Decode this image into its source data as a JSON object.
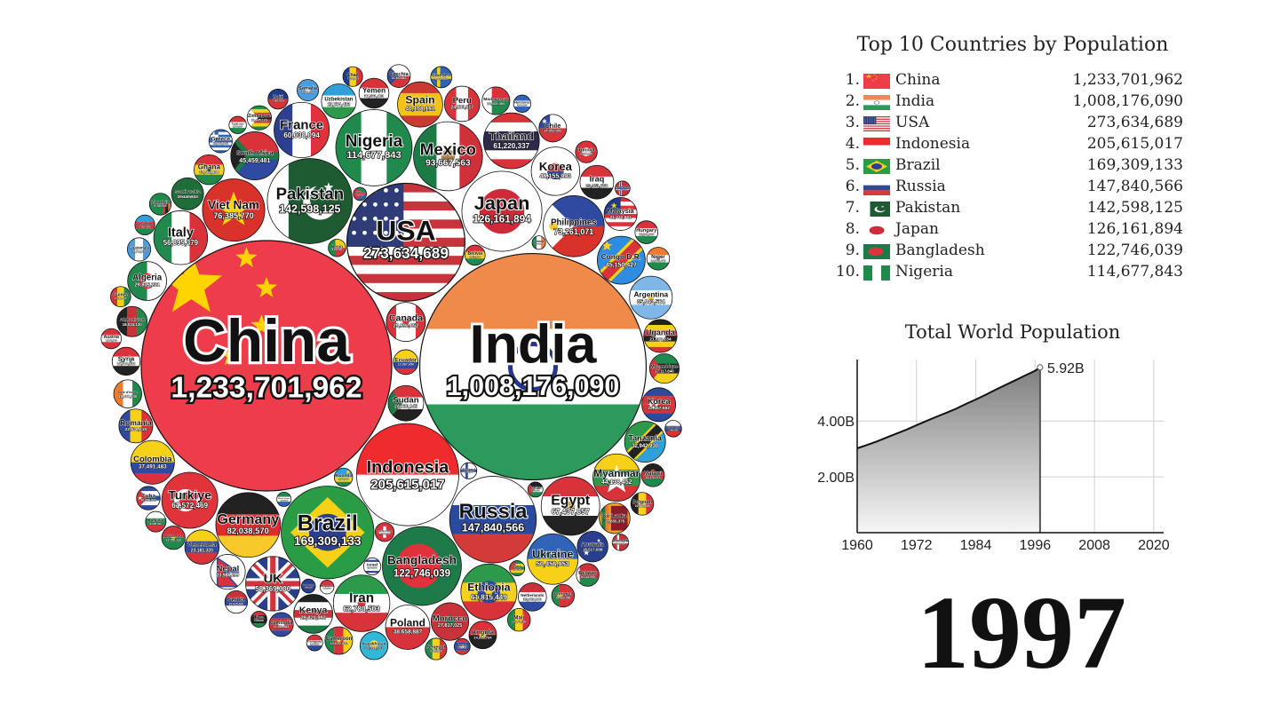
{
  "chart_data": [
    {
      "type": "bubble",
      "bubbles": [
        {
          "name": "China",
          "value": "1,233,701,962",
          "pop": 1233701962,
          "flag": "china"
        },
        {
          "name": "India",
          "value": "1,008,176,090",
          "pop": 1008176090,
          "flag": "india"
        },
        {
          "name": "USA",
          "value": "273,634,689",
          "pop": 273634689,
          "flag": "usa"
        },
        {
          "name": "Indonesia",
          "value": "205,615,017",
          "pop": 205615017,
          "flag": "indonesia"
        },
        {
          "name": "Brazil",
          "value": "169,309,133",
          "pop": 169309133,
          "flag": "brazil"
        },
        {
          "name": "Russia",
          "value": "147,840,566",
          "pop": 147840566,
          "flag": "russia"
        },
        {
          "name": "Pakistan",
          "value": "142,598,125",
          "pop": 142598125,
          "flag": "pakistan"
        },
        {
          "name": "Japan",
          "value": "126,161,894",
          "pop": 126161894,
          "flag": "japan"
        },
        {
          "name": "Bangladesh",
          "value": "122,746,039",
          "pop": 122746039,
          "flag": "bangladesh"
        },
        {
          "name": "Nigeria",
          "value": "114,677,843",
          "pop": 114677843,
          "flag": "nigeria"
        },
        {
          "name": "Mexico",
          "value": "93,667,563",
          "pop": 93667563,
          "flag": "mexico"
        },
        {
          "name": "Germany",
          "value": "82,038,570",
          "pop": 82038570,
          "flag": "germany"
        },
        {
          "name": "Viet Nam",
          "value": "76,385,770",
          "pop": 76385770,
          "flag": "vietnam"
        },
        {
          "name": "Philippines",
          "value": "73,261,071",
          "pop": 73261071,
          "flag": "philippines"
        },
        {
          "name": "Egypt",
          "value": "67,437,857",
          "pop": 67437857,
          "flag": "egypt"
        },
        {
          "name": "Iran",
          "value": "62,780,503",
          "pop": 62780503,
          "flag": "iran"
        },
        {
          "name": "Ethiopia",
          "value": "61,815,449",
          "pop": 61815449,
          "flag": "ethiopia"
        },
        {
          "name": "Turkiye",
          "value": "61,572,469",
          "pop": 61572469,
          "flag": "turkiye"
        },
        {
          "name": "Thailand",
          "value": "61,220,337",
          "pop": 61220337,
          "flag": "thailand"
        },
        {
          "name": "France",
          "value": "60,038,094",
          "pop": 60038094,
          "flag": "france"
        },
        {
          "name": "UK",
          "value": "58,369,000",
          "pop": 58369000,
          "flag": "uk"
        },
        {
          "name": "Italy",
          "value": "56,895,379",
          "pop": 56895379,
          "flag": "italy"
        },
        {
          "name": "Ukraine",
          "value": "50,456,953",
          "pop": 50456953,
          "flag": "ukraine"
        },
        {
          "name": "Korea",
          "value": "46,155,993",
          "pop": 46155993,
          "flag": "korea"
        },
        {
          "name": "South Africa",
          "value": "45,459,481",
          "pop": 45459481,
          "flag": "southafrica"
        },
        {
          "name": "Congo D.R.",
          "value": "45,150,427",
          "pop": 45150427,
          "flag": "congo"
        },
        {
          "name": "Myanmar",
          "value": "44,138,452",
          "pop": 44138452,
          "flag": "myanmar"
        },
        {
          "name": "Spain",
          "value": "40,108,191",
          "pop": 40108191,
          "flag": "spain"
        },
        {
          "name": "Poland",
          "value": "38,658,887",
          "pop": 38658887,
          "flag": "poland"
        },
        {
          "name": "Colombia",
          "value": "37,491,483",
          "pop": 37491483,
          "flag": "colombia"
        },
        {
          "name": "Argentina",
          "value": "35,943,564",
          "pop": 35943564,
          "flag": "argentina"
        },
        {
          "name": "Tanzania",
          "value": "32,942,930",
          "pop": 32942930,
          "flag": "tanzania"
        },
        {
          "name": "Kenya",
          "value": "29,820,992",
          "pop": 29820992,
          "flag": "kenya"
        },
        {
          "name": "Canada",
          "value": "29,992,052",
          "pop": 29992052,
          "flag": "canada"
        },
        {
          "name": "Algeria",
          "value": "29,815,231",
          "pop": 29815231,
          "flag": "algeria"
        },
        {
          "name": "Morocco",
          "value": "27,817,025",
          "pop": 27817025,
          "flag": "morocco"
        },
        {
          "name": "Sudan",
          "value": "24,830,145",
          "pop": 24830145,
          "flag": "sudan"
        },
        {
          "name": "Uzbekistan",
          "value": "23,754,433",
          "pop": 23754433,
          "flag": "uzbekistan"
        },
        {
          "name": "Peru",
          "value": "24,503,517",
          "pop": 24503517,
          "flag": "peru"
        },
        {
          "name": "Nepal",
          "value": "23,986,299",
          "pop": 23986299,
          "flag": "nepal"
        },
        {
          "name": "Korea",
          "value": "22,557,592",
          "pop": 22557592,
          "flag": "northkorea"
        },
        {
          "name": "Romania",
          "value": "22,539,710",
          "pop": 22539710,
          "flag": "romania"
        },
        {
          "name": "Malaysia",
          "value": "21,432,661",
          "pop": 21432661,
          "flag": "malaysia"
        },
        {
          "name": "Iraq",
          "value": "22,351,756",
          "pop": 22351756,
          "flag": "iraq"
        },
        {
          "name": "Uganda",
          "value": "21,606,234",
          "pop": 21606234,
          "flag": "uganda"
        },
        {
          "name": "Venezuela",
          "value": "23,181,320",
          "pop": 23181320,
          "flag": "venezuela"
        },
        {
          "name": "Saudi Arabia",
          "value": "20,140,833",
          "pop": 20140833,
          "flag": "saudi"
        },
        {
          "name": "Australia",
          "value": "18,517,000",
          "pop": 18517000,
          "flag": "australia"
        },
        {
          "name": "Ghana",
          "value": "17,666,498",
          "pop": 17666498,
          "flag": "ghana"
        },
        {
          "name": "Yemen",
          "value": "17,591,463",
          "pop": 17591463,
          "flag": "yemen"
        },
        {
          "name": "Mozambique",
          "value": "17,117,640",
          "pop": 17117640,
          "flag": "mozambique"
        },
        {
          "name": "Afghanistan",
          "value": "18,034,130",
          "pop": 18034130,
          "flag": "afghanistan"
        },
        {
          "name": "Sri Lanka",
          "value": "18,655,375",
          "pop": 18655375,
          "flag": "srilanka"
        },
        {
          "name": "Cameroon",
          "value": "15,015,553",
          "pop": 15015553,
          "flag": "cameroon"
        },
        {
          "name": "Madagascar",
          "value": "15,105,300",
          "pop": 15105300,
          "flag": "madagascar"
        },
        {
          "name": "Chile",
          "value": "14,953,000",
          "pop": 14953000,
          "flag": "chile"
        },
        {
          "name": "Kazakhstan",
          "value": "15,333,701",
          "pop": 15333701,
          "flag": "kazakhstan"
        },
        {
          "name": "Netherlands",
          "value": "15,607,000",
          "pop": 15607000,
          "flag": "netherlands"
        },
        {
          "name": "Syria",
          "value": "15,380,232",
          "pop": 15380232,
          "flag": "syria"
        },
        {
          "name": "Cote d'Ivoire",
          "value": "15,460,330",
          "pop": 15460330,
          "flag": "ivory"
        },
        {
          "name": "Angola",
          "value": "14,918,734",
          "pop": 14918734,
          "flag": "angola"
        },
        {
          "name": "Niger",
          "value": "10,183,440",
          "pop": 10183440,
          "flag": "niger"
        },
        {
          "name": "Ecuador",
          "value": "12,067,650",
          "pop": 12067650,
          "flag": "ecuador"
        },
        {
          "name": "Cambodia",
          "value": "11,426,383",
          "pop": 11426383,
          "flag": "cambodia"
        },
        {
          "name": "Malawi",
          "value": "10,376,272",
          "pop": 10376272,
          "flag": "malawi"
        },
        {
          "name": "Mali",
          "value": "10,163,187",
          "pop": 10163187,
          "flag": "mali"
        },
        {
          "name": "Burkina Faso",
          "value": "10,750,116",
          "pop": 10750116,
          "flag": "burkina"
        },
        {
          "name": "Guatemala",
          "value": "10,714,820",
          "pop": 10714820,
          "flag": "guatemala"
        },
        {
          "name": "Zimbabwe",
          "value": "11,645,123",
          "pop": 11645123,
          "flag": "zimbabwe"
        },
        {
          "name": "Greece",
          "value": "10,661,302",
          "pop": 10661302,
          "flag": "greece"
        },
        {
          "name": "Cuba",
          "value": "10,958,932",
          "pop": 10958932,
          "flag": "cuba"
        },
        {
          "name": "Portugal",
          "value": "10,133,758",
          "pop": 10133758,
          "flag": "portugal"
        },
        {
          "name": "Czechia",
          "value": "10,303,642",
          "pop": 10303642,
          "flag": "czechia"
        },
        {
          "name": "Belgium",
          "value": "10,181,245",
          "pop": 10181245,
          "flag": "belgium"
        },
        {
          "name": "Hungary",
          "value": "10,266,000",
          "pop": 10266000,
          "flag": "hungary"
        },
        {
          "name": "Serbia",
          "value": "10,025,000",
          "pop": 10025000,
          "flag": "serbia"
        },
        {
          "name": "Somalia",
          "value": "9,059,063",
          "pop": 9059063,
          "flag": "somalia"
        },
        {
          "name": "Chad",
          "value": "7,650,000",
          "pop": 7650000,
          "flag": "chad"
        },
        {
          "name": "Tunisia",
          "value": "9,337,000",
          "pop": 9337000,
          "flag": "tunisia"
        },
        {
          "name": "Bolivia",
          "value": "8,051,000",
          "pop": 8051000,
          "flag": "bolivia"
        },
        {
          "name": "Belarus",
          "value": "10,141,000",
          "pop": 10141000,
          "flag": "belarus"
        },
        {
          "name": "Zambia",
          "value": "9,330,000",
          "pop": 9330000,
          "flag": "zambia"
        },
        {
          "name": "Senegal",
          "value": "9,160,000",
          "pop": 9160000,
          "flag": "senegal"
        },
        {
          "name": "Guinea",
          "value": "8,018,000",
          "pop": 8018000,
          "flag": "guinea"
        },
        {
          "name": "Rwanda",
          "value": "6,600,000",
          "pop": 6600000,
          "flag": "rwanda"
        },
        {
          "name": "Sweden",
          "value": "8,846,000",
          "pop": 8846000,
          "flag": "sweden"
        },
        {
          "name": "Austria",
          "value": "7,968,000",
          "pop": 7968000,
          "flag": "austria"
        },
        {
          "name": "Bulgaria",
          "value": "8,283,000",
          "pop": 8283000,
          "flag": "bulgaria"
        },
        {
          "name": "Haiti",
          "value": "7,900,000",
          "pop": 7900000,
          "flag": "haiti"
        },
        {
          "name": "Benin",
          "value": "6,000,000",
          "pop": 6000000,
          "flag": "benin"
        },
        {
          "name": "Tajikistan",
          "value": "5,900,000",
          "pop": 5900000,
          "flag": "tajikistan"
        },
        {
          "name": "Honduras",
          "value": "5,900,000",
          "pop": 5900000,
          "flag": "honduras"
        },
        {
          "name": "Israel",
          "value": "5,800,000",
          "pop": 5800000,
          "flag": "israel"
        },
        {
          "name": "Switzerland",
          "value": "7,100,000",
          "pop": 7100000,
          "flag": "switzerland"
        },
        {
          "name": "Azerbaijan",
          "value": "7,800,000",
          "pop": 7800000,
          "flag": "azerbaijan"
        },
        {
          "name": "Jordan",
          "value": "4,500,000",
          "pop": 4500000,
          "flag": "jordan"
        },
        {
          "name": "Laos",
          "value": "5,000,000",
          "pop": 5000000,
          "flag": "laos"
        },
        {
          "name": "Libya",
          "value": "5,000,000",
          "pop": 5000000,
          "flag": "libya"
        },
        {
          "name": "Denmark",
          "value": "5,300,000",
          "pop": 5300000,
          "flag": "denmark"
        },
        {
          "name": "Finland",
          "value": "5,100,000",
          "pop": 5100000,
          "flag": "finland"
        },
        {
          "name": "Togo",
          "value": "4,500,000",
          "pop": 4500000,
          "flag": "togo"
        },
        {
          "name": "Slovakia",
          "value": "5,400,000",
          "pop": 5400000,
          "flag": "slovakia"
        },
        {
          "name": "Paraguay",
          "value": "5,100,000",
          "pop": 5100000,
          "flag": "paraguay"
        },
        {
          "name": "Norway",
          "value": "4,400,000",
          "pop": 4400000,
          "flag": "norway"
        },
        {
          "name": "Sierra Leone",
          "value": "4,000,000",
          "pop": 4000000,
          "flag": "sierraleone"
        },
        {
          "name": "Eritrea",
          "value": "3,400,000",
          "pop": 3400000,
          "flag": "eritrea"
        },
        {
          "name": "Singapore",
          "value": "3,800,000",
          "pop": 3800000,
          "flag": "singapore"
        },
        {
          "name": "Ireland",
          "value": "3,600,000",
          "pop": 3600000,
          "flag": "ireland"
        },
        {
          "name": "New Zealand",
          "value": "3,800,000",
          "pop": 3800000,
          "flag": "newzealand"
        }
      ]
    },
    {
      "type": "table",
      "title": "Top 10 Countries by Population",
      "rows": [
        {
          "rank": "1.",
          "name": "China",
          "value": "1,233,701,962",
          "flag": "china"
        },
        {
          "rank": "2.",
          "name": "India",
          "value": "1,008,176,090",
          "flag": "india"
        },
        {
          "rank": "3.",
          "name": "USA",
          "value": "273,634,689",
          "flag": "usa"
        },
        {
          "rank": "4.",
          "name": "Indonesia",
          "value": "205,615,017",
          "flag": "indonesia"
        },
        {
          "rank": "5.",
          "name": "Brazil",
          "value": "169,309,133",
          "flag": "brazil"
        },
        {
          "rank": "6.",
          "name": "Russia",
          "value": "147,840,566",
          "flag": "russia"
        },
        {
          "rank": "7.",
          "name": "Pakistan",
          "value": "142,598,125",
          "flag": "pakistan"
        },
        {
          "rank": "8.",
          "name": "Japan",
          "value": "126,161,894",
          "flag": "japan"
        },
        {
          "rank": "9.",
          "name": "Bangladesh",
          "value": "122,746,039",
          "flag": "bangladesh"
        },
        {
          "rank": "10.",
          "name": "Nigeria",
          "value": "114,677,843",
          "flag": "nigeria"
        }
      ]
    },
    {
      "type": "area",
      "title": "Total World Population",
      "x": [
        1960,
        1962,
        1964,
        1966,
        1968,
        1970,
        1972,
        1974,
        1976,
        1978,
        1980,
        1982,
        1984,
        1986,
        1988,
        1990,
        1992,
        1994,
        1996,
        1997
      ],
      "y": [
        3.02,
        3.14,
        3.27,
        3.41,
        3.55,
        3.69,
        3.85,
        4.0,
        4.15,
        4.29,
        4.44,
        4.61,
        4.77,
        4.94,
        5.12,
        5.29,
        5.46,
        5.63,
        5.8,
        5.92
      ],
      "end_label": "5.92B",
      "xticks": [
        "1960",
        "1972",
        "1984",
        "1996",
        "2008",
        "2020"
      ],
      "xtick_values": [
        1960,
        1972,
        1984,
        1996,
        2008,
        2020
      ],
      "yticks": [
        "2.00B",
        "4.00B"
      ],
      "ytick_values": [
        2,
        4
      ],
      "xlim": [
        1960,
        2022
      ],
      "ylim": [
        0,
        6.2
      ],
      "grid": true
    }
  ],
  "year": "1997",
  "colors": {
    "red": "#ef4444",
    "china": "#ee3d4a",
    "star": "#ffd400",
    "india_orange": "#f08a4b",
    "india_green": "#2b9a5a",
    "navy": "#23408e",
    "green": "#1f8a4c",
    "bubble_stroke": "#111111",
    "area_top": "#7f7f7f",
    "area_bottom": "#f6f6f6"
  }
}
